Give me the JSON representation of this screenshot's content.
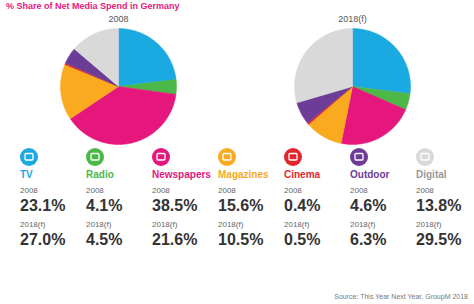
{
  "chart_data": {
    "type": "pie",
    "title": "% Share of Net Media Spend in Germany",
    "categories": [
      "TV",
      "Radio",
      "Newspapers",
      "Magazines",
      "Cinema",
      "Outdoor",
      "Digital"
    ],
    "colors": [
      "#1ba9e1",
      "#4cb848",
      "#e5177d",
      "#f9aa1f",
      "#e3262e",
      "#6d3c96",
      "#d9d9d9"
    ],
    "series": [
      {
        "name": "2008",
        "values": [
          23.1,
          4.1,
          38.5,
          15.6,
          0.4,
          4.6,
          13.8
        ],
        "value_labels": [
          "23.1%",
          "4.1%",
          "38.5%",
          "15.6%",
          "0.4%",
          "4.6%",
          "13.8%"
        ]
      },
      {
        "name": "2018(f)",
        "values": [
          27.0,
          4.5,
          21.6,
          10.5,
          0.5,
          6.3,
          29.5
        ],
        "value_labels": [
          "27.0%",
          "4.5%",
          "21.6%",
          "10.5%",
          "0.5%",
          "6.3%",
          "29.5%"
        ]
      }
    ],
    "source": "Source: This Year Next Year, GroupM 2018"
  }
}
